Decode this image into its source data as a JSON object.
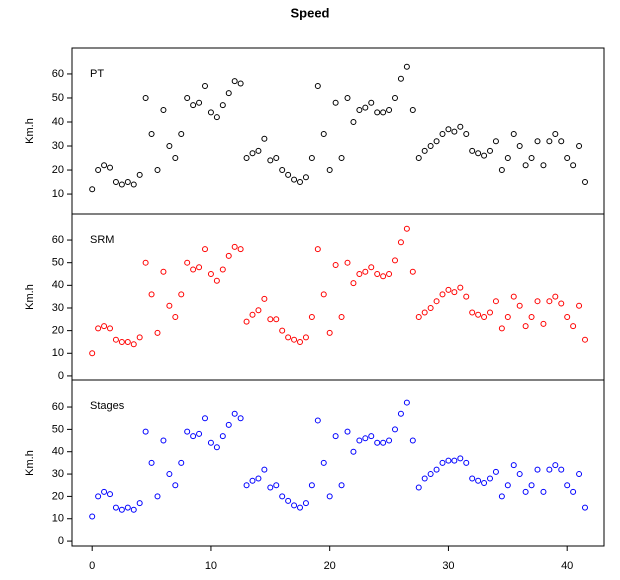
{
  "chart_data": {
    "type": "scatter",
    "title": "Speed",
    "y_label": "Km.h",
    "x": [
      0,
      0.5,
      1,
      1.5,
      2,
      2.5,
      3,
      3.5,
      4,
      4.5,
      5,
      5.5,
      6,
      6.5,
      7,
      7.5,
      8,
      8.5,
      9,
      9.5,
      10,
      10.5,
      11,
      11.5,
      12,
      12.5,
      13,
      13.5,
      14,
      14.5,
      15,
      15.5,
      16,
      16.5,
      17,
      17.5,
      18,
      18.5,
      19,
      19.5,
      20,
      20.5,
      21,
      21.5,
      22,
      22.5,
      23,
      23.5,
      24,
      24.5,
      25,
      25.5,
      26,
      26.5,
      27,
      27.5,
      28,
      28.5,
      29,
      29.5,
      30,
      30.5,
      31,
      31.5,
      32,
      32.5,
      33,
      33.5,
      34,
      34.5,
      35,
      35.5,
      36,
      36.5,
      37,
      37.5,
      38,
      38.5,
      39,
      39.5,
      40,
      40.5,
      41,
      41.5
    ],
    "xlim": [
      -1.7,
      43.1
    ],
    "xticks": [
      0,
      10,
      20,
      30,
      40
    ],
    "series": [
      {
        "name": "PT",
        "color": "#000000",
        "ylim": [
          1.7,
          70.8
        ],
        "yticks": [
          10,
          20,
          30,
          40,
          50,
          60
        ],
        "values": [
          12,
          20,
          22,
          21,
          15,
          14,
          15,
          14,
          18,
          50,
          35,
          20,
          45,
          30,
          25,
          35,
          50,
          47,
          48,
          55,
          44,
          42,
          47,
          52,
          57,
          56,
          25,
          27,
          28,
          33,
          24,
          25,
          20,
          18,
          16,
          15,
          17,
          25,
          55,
          35,
          20,
          48,
          25,
          50,
          40,
          45,
          46,
          48,
          44,
          44,
          45,
          50,
          58,
          63,
          45,
          25,
          28,
          30,
          32,
          35,
          37,
          36,
          38,
          35,
          28,
          27,
          26,
          28,
          32,
          20,
          25,
          35,
          30,
          22,
          25,
          32,
          22,
          32,
          35,
          32,
          25,
          22,
          30,
          15
        ]
      },
      {
        "name": "SRM",
        "color": "#ff0000",
        "ylim": [
          -1.8,
          71.5
        ],
        "yticks": [
          0,
          10,
          20,
          30,
          40,
          50,
          60
        ],
        "values": [
          10,
          21,
          22,
          21,
          16,
          15,
          15,
          14,
          17,
          50,
          36,
          19,
          46,
          31,
          26,
          36,
          50,
          47,
          48,
          56,
          45,
          42,
          47,
          53,
          57,
          56,
          24,
          27,
          29,
          34,
          25,
          25,
          20,
          17,
          16,
          15,
          17,
          26,
          56,
          36,
          19,
          49,
          26,
          50,
          41,
          45,
          46,
          48,
          45,
          44,
          45,
          51,
          59,
          65,
          46,
          26,
          28,
          30,
          33,
          36,
          38,
          37,
          39,
          35,
          28,
          27,
          26,
          28,
          33,
          21,
          26,
          35,
          31,
          22,
          26,
          33,
          23,
          33,
          35,
          32,
          26,
          22,
          31,
          16
        ]
      },
      {
        "name": "Stages",
        "color": "#0000ff",
        "ylim": [
          -2.2,
          72.1
        ],
        "yticks": [
          0,
          10,
          20,
          30,
          40,
          50,
          60
        ],
        "values": [
          11,
          20,
          22,
          21,
          15,
          14,
          15,
          14,
          17,
          49,
          35,
          20,
          45,
          30,
          25,
          35,
          49,
          47,
          48,
          55,
          44,
          42,
          47,
          52,
          57,
          55,
          25,
          27,
          28,
          32,
          24,
          25,
          20,
          18,
          16,
          15,
          17,
          25,
          54,
          35,
          20,
          47,
          25,
          49,
          40,
          45,
          46,
          47,
          44,
          44,
          45,
          50,
          57,
          62,
          45,
          24,
          28,
          30,
          32,
          35,
          36,
          36,
          37,
          35,
          28,
          27,
          26,
          28,
          31,
          20,
          25,
          34,
          30,
          22,
          25,
          32,
          22,
          32,
          34,
          32,
          25,
          22,
          30,
          15
        ]
      }
    ]
  }
}
